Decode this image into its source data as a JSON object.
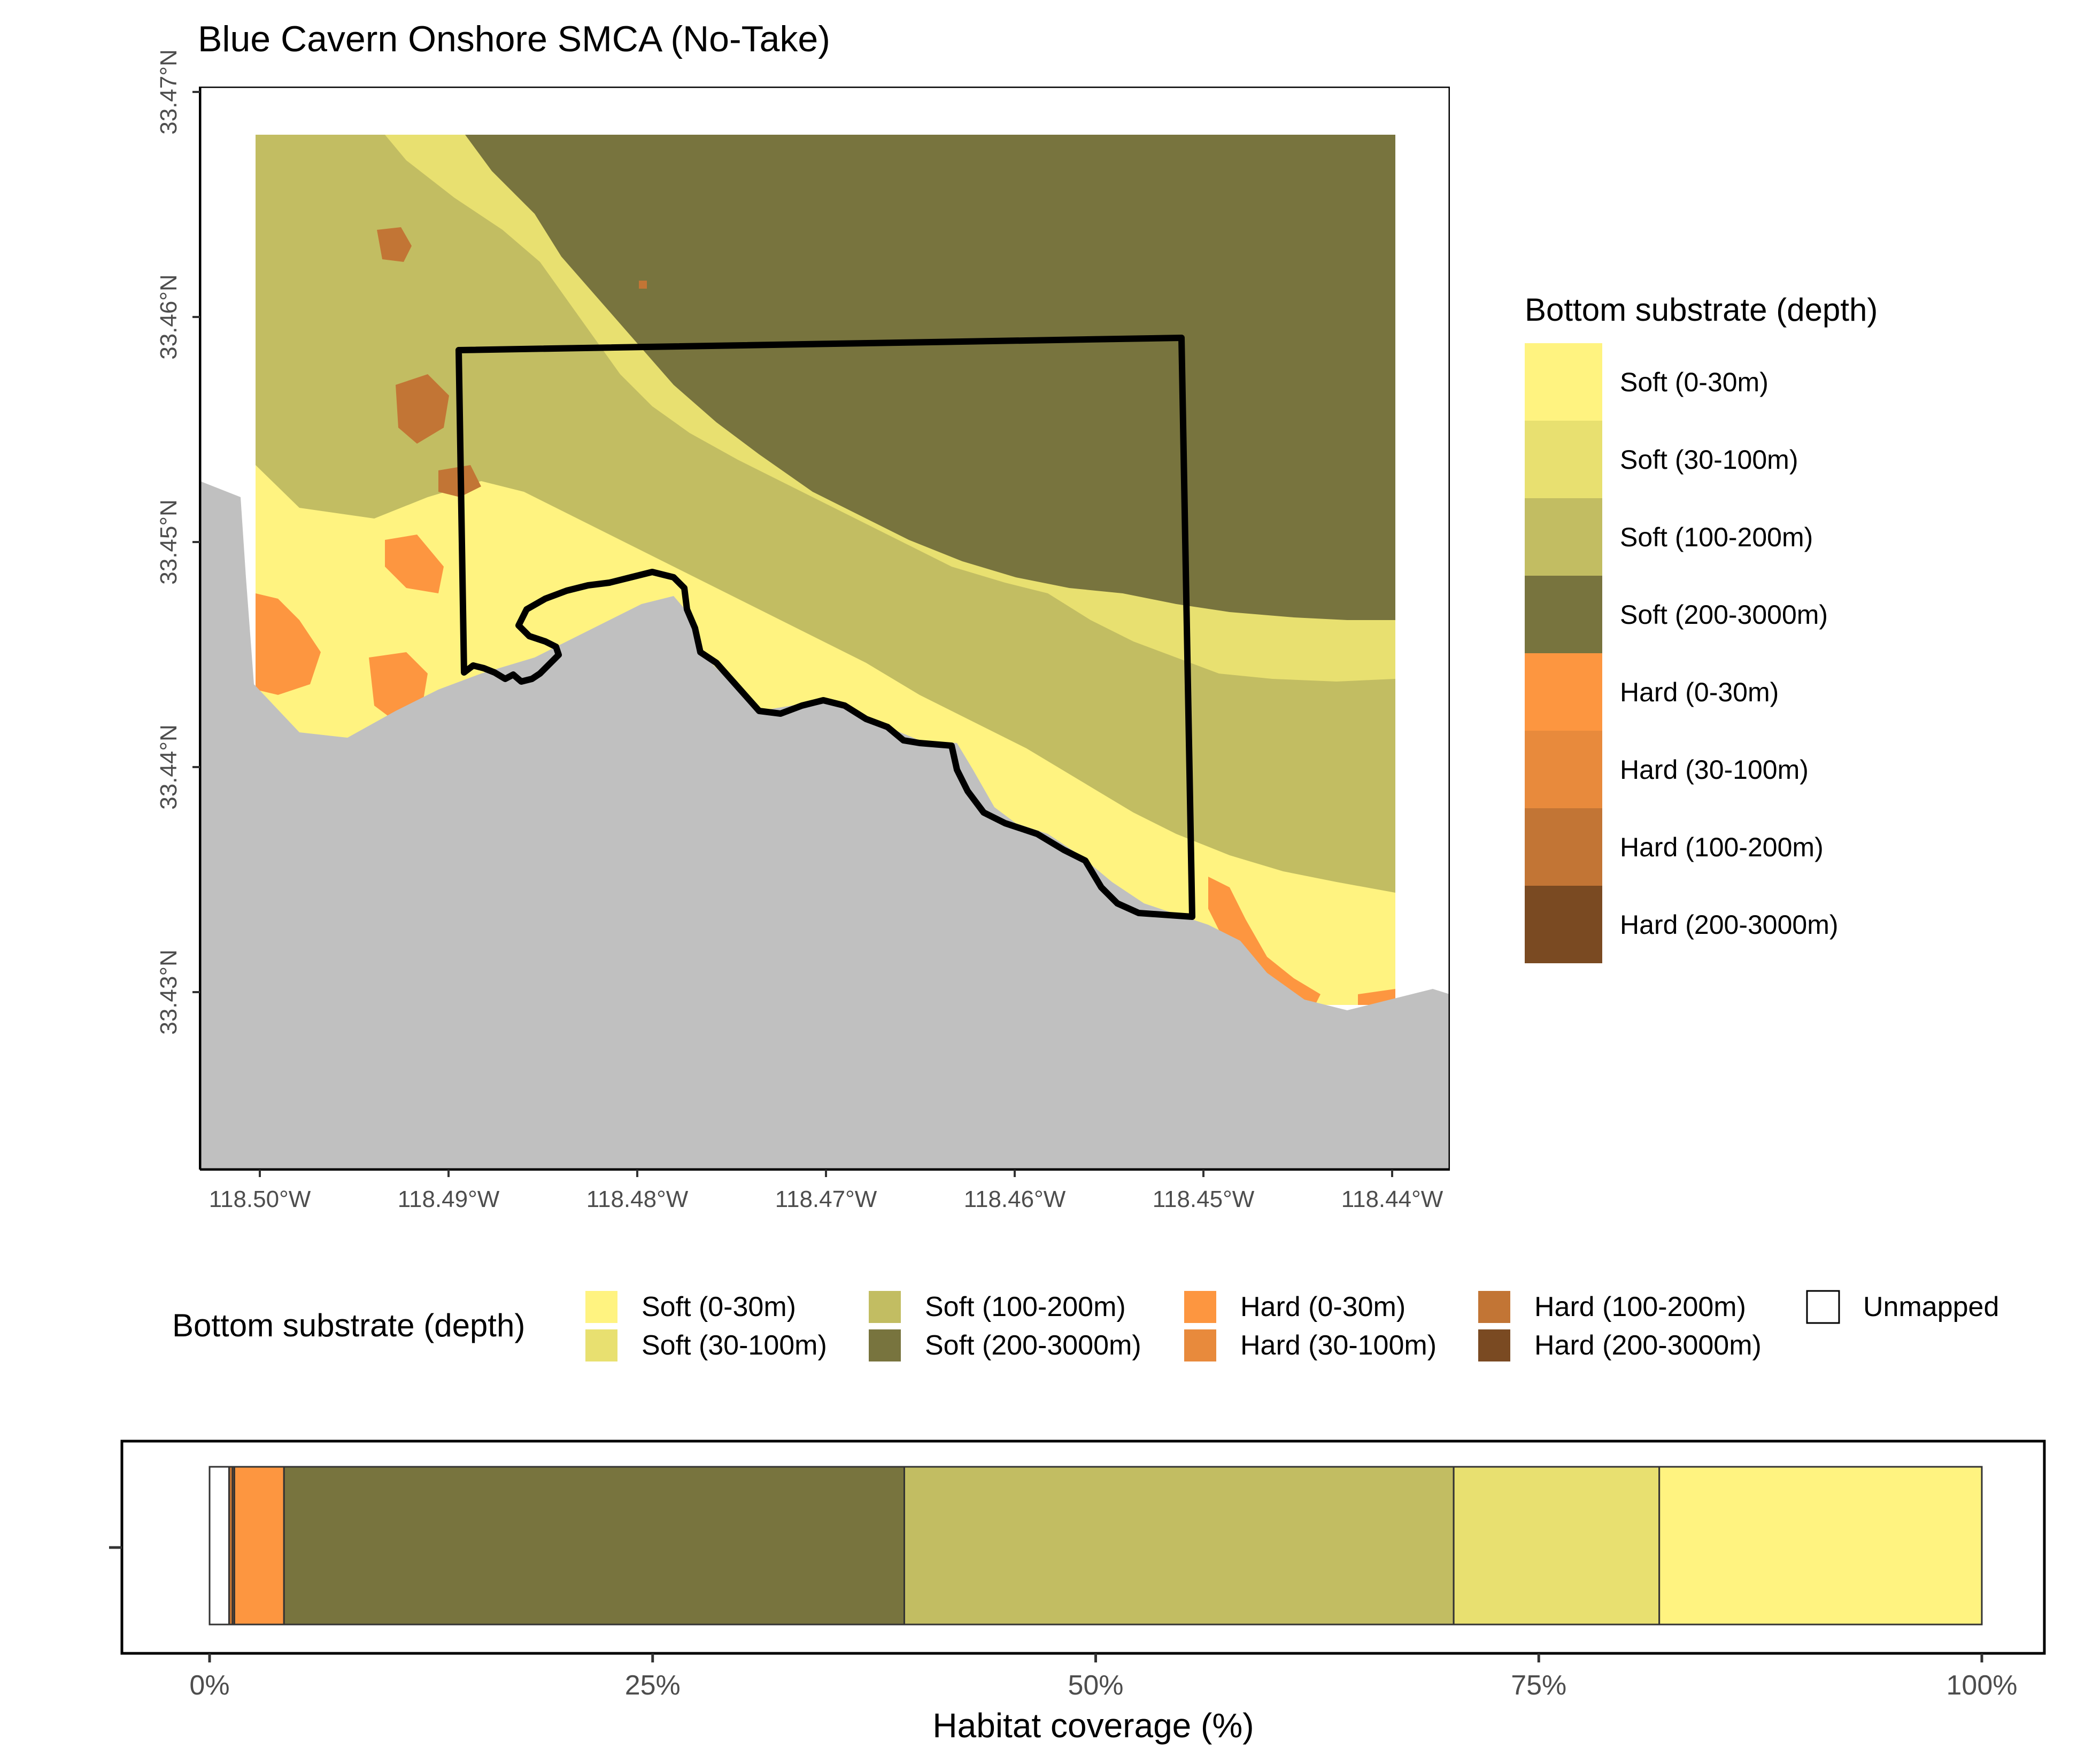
{
  "map": {
    "title": "Blue Cavern Onshore SMCA (No-Take)",
    "x_ticks": [
      "118.50°W",
      "118.49°W",
      "118.48°W",
      "118.47°W",
      "118.46°W",
      "118.45°W",
      "118.44°W"
    ],
    "y_ticks": [
      "33.47°N",
      "33.46°N",
      "33.45°N",
      "33.44°N",
      "33.43°N"
    ],
    "land_color": "#c0c0c0"
  },
  "legend_right": {
    "title": "Bottom substrate (depth)",
    "items": [
      {
        "label": "Soft (0-30m)",
        "color": "#fff380"
      },
      {
        "label": "Soft (30-100m)",
        "color": "#e8e070"
      },
      {
        "label": "Soft (100-200m)",
        "color": "#c2bd62"
      },
      {
        "label": "Soft (200-3000m)",
        "color": "#78743e"
      },
      {
        "label": "Hard (0-30m)",
        "color": "#fd9640"
      },
      {
        "label": "Hard (30-100m)",
        "color": "#e88a3c"
      },
      {
        "label": "Hard (100-200m)",
        "color": "#c27535"
      },
      {
        "label": "Hard (200-3000m)",
        "color": "#7a4a22"
      }
    ]
  },
  "legend_bottom": {
    "title": "Bottom substrate (depth)",
    "items": [
      {
        "label": "Soft (0-30m)",
        "color": "#fff380"
      },
      {
        "label": "Soft (30-100m)",
        "color": "#e8e070"
      },
      {
        "label": "Soft (100-200m)",
        "color": "#c2bd62"
      },
      {
        "label": "Soft (200-3000m)",
        "color": "#78743e"
      },
      {
        "label": "Hard (0-30m)",
        "color": "#fd9640"
      },
      {
        "label": "Hard (30-100m)",
        "color": "#e88a3c"
      },
      {
        "label": "Hard (100-200m)",
        "color": "#c27535"
      },
      {
        "label": "Hard (200-3000m)",
        "color": "#7a4a22"
      },
      {
        "label": "Unmapped",
        "color": "#ffffff"
      }
    ]
  },
  "chart_data": {
    "type": "bar",
    "orientation": "horizontal",
    "stacked": true,
    "xlabel": "Habitat coverage (%)",
    "x_ticks": [
      "0%",
      "25%",
      "50%",
      "75%",
      "100%"
    ],
    "xlim": [
      0,
      100
    ],
    "segments": [
      {
        "name": "Unmapped",
        "value": 1.1,
        "color": "#ffffff"
      },
      {
        "name": "Hard (100-200m)",
        "value": 0.2,
        "color": "#c27535"
      },
      {
        "name": "Hard (30-100m)",
        "value": 0.1,
        "color": "#e88a3c"
      },
      {
        "name": "Hard (0-30m)",
        "value": 2.8,
        "color": "#fd9640"
      },
      {
        "name": "Soft (200-3000m)",
        "value": 35.0,
        "color": "#78743e"
      },
      {
        "name": "Soft (100-200m)",
        "value": 31.0,
        "color": "#c2bd62"
      },
      {
        "name": "Soft (30-100m)",
        "value": 11.6,
        "color": "#e8e070"
      },
      {
        "name": "Soft (0-30m)",
        "value": 18.2,
        "color": "#fff380"
      }
    ]
  }
}
